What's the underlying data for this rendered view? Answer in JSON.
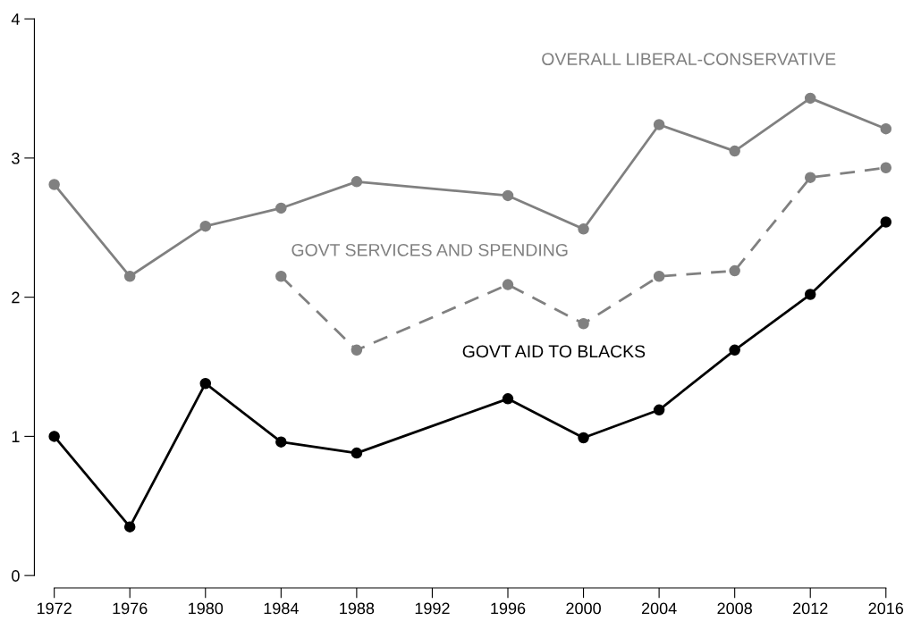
{
  "chart_data": {
    "type": "line",
    "marker": "circle",
    "grid": false,
    "legend": false,
    "xlim": [
      1972,
      2016
    ],
    "xticks": [
      1972,
      1976,
      1980,
      1984,
      1988,
      1992,
      1996,
      2000,
      2004,
      2008,
      2012,
      2016
    ],
    "ylim": [
      0,
      4
    ],
    "yticks": [
      0,
      1,
      2,
      3,
      4
    ],
    "series": [
      {
        "name": "OVERALL LIBERAL-CONSERVATIVE",
        "color": "#808080",
        "line_style": "solid",
        "x": [
          1972,
          1976,
          1980,
          1984,
          1988,
          1996,
          2000,
          2004,
          2008,
          2012,
          2016
        ],
        "values": [
          2.81,
          2.15,
          2.51,
          2.64,
          2.83,
          2.73,
          2.49,
          3.24,
          3.05,
          3.43,
          3.21
        ]
      },
      {
        "name": "GOVT SERVICES AND SPENDING",
        "color": "#808080",
        "line_style": "dashed",
        "x": [
          1984,
          1988,
          1996,
          2000,
          2004,
          2008,
          2012,
          2016
        ],
        "values": [
          2.15,
          1.62,
          2.09,
          1.81,
          2.15,
          2.19,
          2.86,
          2.93
        ]
      },
      {
        "name": "GOVT AID TO BLACKS",
        "color": "#000000",
        "line_style": "solid",
        "x": [
          1972,
          1976,
          1980,
          1984,
          1988,
          1996,
          2000,
          2004,
          2008,
          2012,
          2016
        ],
        "values": [
          1.0,
          0.35,
          1.38,
          0.96,
          0.88,
          1.27,
          0.99,
          1.19,
          1.62,
          2.02,
          2.54
        ]
      }
    ]
  }
}
